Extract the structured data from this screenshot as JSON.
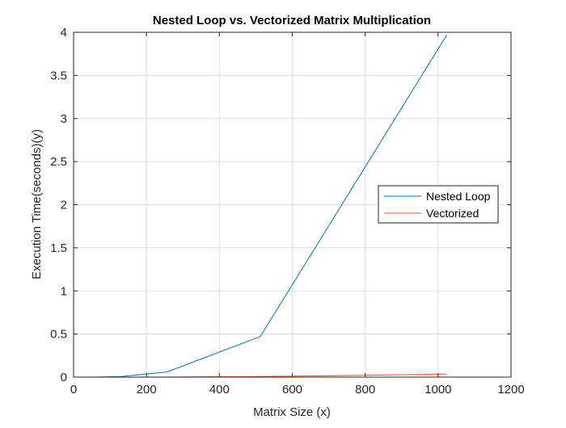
{
  "chart_data": {
    "type": "line",
    "title": "Nested Loop vs. Vectorized Matrix Multiplication",
    "xlabel": "Matrix Size (x)",
    "ylabel": "Execution Time(seconds)(y)",
    "xlim": [
      0,
      1200
    ],
    "ylim": [
      0,
      4
    ],
    "xticks": [
      0,
      200,
      400,
      600,
      800,
      1000,
      1200
    ],
    "yticks": [
      0,
      0.5,
      1,
      1.5,
      2,
      2.5,
      3,
      3.5,
      4
    ],
    "xtick_labels": [
      "0",
      "200",
      "400",
      "600",
      "800",
      "1000",
      "1200"
    ],
    "ytick_labels": [
      "0",
      "0.5",
      "1",
      "1.5",
      "2",
      "2.5",
      "3",
      "3.5",
      "4"
    ],
    "grid": true,
    "legend_position": "right",
    "series": [
      {
        "name": "Nested Loop",
        "color": "#0072BD",
        "x": [
          2,
          4,
          8,
          16,
          32,
          64,
          128,
          256,
          512,
          1024
        ],
        "y": [
          0,
          0,
          0,
          0,
          0.0002,
          0.0012,
          0.006,
          0.06,
          0.47,
          3.97
        ]
      },
      {
        "name": "Vectorized",
        "color": "#D95319",
        "x": [
          2,
          4,
          8,
          16,
          32,
          64,
          128,
          256,
          512,
          1024
        ],
        "y": [
          0,
          0,
          0,
          0,
          0,
          0,
          0.0001,
          0.001,
          0.006,
          0.035
        ]
      }
    ]
  }
}
